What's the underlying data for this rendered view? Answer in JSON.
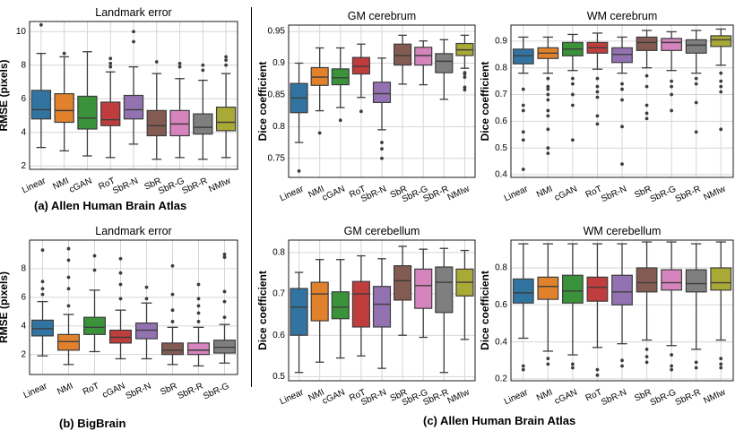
{
  "captions": {
    "a": "(a) Allen Human Brain Atlas",
    "b": "(b) BigBrain",
    "c": "(c) Allen Human Brain Atlas"
  },
  "colors": {
    "blue": "#3274a1",
    "orange": "#e1812c",
    "green": "#3a923a",
    "red": "#c03d3e",
    "purple": "#9372b2",
    "brown": "#845b53",
    "pink": "#d684bd",
    "gray": "#7f7f7f",
    "olive": "#a9aa35"
  },
  "chart_data": [
    {
      "id": "a",
      "type": "box",
      "title": "Landmark error",
      "xlabel": "",
      "ylabel": "RMSE (pixels)",
      "ylim": [
        1.8,
        10.6
      ],
      "yticks": [
        2,
        4,
        6,
        8,
        10
      ],
      "categories": [
        "Linear",
        "NMI",
        "cGAN",
        "RoT",
        "SbR-N",
        "SbR",
        "SbR-G",
        "SbR-R",
        "NMIw"
      ],
      "colors": [
        "blue",
        "orange",
        "green",
        "red",
        "purple",
        "brown",
        "pink",
        "gray",
        "olive"
      ],
      "boxes": [
        {
          "whislo": 3.1,
          "q1": 4.8,
          "med": 5.35,
          "q3": 6.5,
          "whishi": 8.7,
          "fliers": [
            10.4
          ]
        },
        {
          "whislo": 2.9,
          "q1": 4.6,
          "med": 5.3,
          "q3": 6.3,
          "whishi": 8.5,
          "fliers": [
            8.7
          ]
        },
        {
          "whislo": 2.6,
          "q1": 4.2,
          "med": 4.85,
          "q3": 6.15,
          "whishi": 8.8,
          "fliers": []
        },
        {
          "whislo": 2.5,
          "q1": 4.4,
          "med": 4.75,
          "q3": 5.8,
          "whishi": 7.6,
          "fliers": [
            7.9,
            8.1,
            8.4
          ]
        },
        {
          "whislo": 3.3,
          "q1": 4.8,
          "med": 5.35,
          "q3": 6.2,
          "whishi": 7.9,
          "fliers": [
            9.4,
            10.0
          ]
        },
        {
          "whislo": 2.4,
          "q1": 3.8,
          "med": 4.4,
          "q3": 5.3,
          "whishi": 7.5,
          "fliers": [
            8.2
          ]
        },
        {
          "whislo": 2.5,
          "q1": 3.8,
          "med": 4.5,
          "q3": 5.3,
          "whishi": 7.2,
          "fliers": [
            7.9,
            8.1
          ]
        },
        {
          "whislo": 2.4,
          "q1": 3.9,
          "med": 4.3,
          "q3": 5.1,
          "whishi": 7.1,
          "fliers": [
            7.7,
            8.0
          ]
        },
        {
          "whislo": 2.5,
          "q1": 4.1,
          "med": 4.6,
          "q3": 5.5,
          "whishi": 7.5,
          "fliers": [
            8.0,
            8.3,
            8.5
          ]
        }
      ]
    },
    {
      "id": "b",
      "type": "box",
      "title": "Landmark error",
      "xlabel": "",
      "ylabel": "RMSE (pixels)",
      "ylim": [
        0.6,
        10.0
      ],
      "yticks": [
        2,
        4,
        6,
        8
      ],
      "categories": [
        "Linear",
        "NMI",
        "RoT",
        "cGAN",
        "SbR-N",
        "SbR",
        "SbR-R",
        "SbR-G"
      ],
      "colors": [
        "blue",
        "orange",
        "green",
        "red",
        "purple",
        "brown",
        "pink",
        "gray"
      ],
      "boxes": [
        {
          "whislo": 1.9,
          "q1": 3.3,
          "med": 3.8,
          "q3": 4.4,
          "whishi": 5.7,
          "fliers": [
            6.2,
            6.6,
            7.1,
            9.3
          ]
        },
        {
          "whislo": 1.3,
          "q1": 2.3,
          "med": 2.9,
          "q3": 3.4,
          "whishi": 4.8,
          "fliers": [
            5.4,
            6.6,
            7.4,
            8.6,
            9.4
          ]
        },
        {
          "whislo": 2.2,
          "q1": 3.4,
          "med": 3.9,
          "q3": 4.6,
          "whishi": 6.5,
          "fliers": [
            7.9,
            8.9
          ]
        },
        {
          "whislo": 1.7,
          "q1": 2.8,
          "med": 3.2,
          "q3": 3.7,
          "whishi": 5.1,
          "fliers": [
            5.9,
            6.9,
            7.7,
            8.7
          ]
        },
        {
          "whislo": 1.7,
          "q1": 3.1,
          "med": 3.7,
          "q3": 4.2,
          "whishi": 5.6,
          "fliers": [
            5.9,
            6.7
          ]
        },
        {
          "whislo": 1.3,
          "q1": 2.0,
          "med": 2.3,
          "q3": 2.8,
          "whishi": 3.9,
          "fliers": [
            4.3,
            5.1,
            6.2,
            8.2
          ]
        },
        {
          "whislo": 1.2,
          "q1": 2.0,
          "med": 2.3,
          "q3": 2.8,
          "whishi": 3.9,
          "fliers": [
            4.3,
            4.9,
            5.4,
            5.9,
            6.9
          ]
        },
        {
          "whislo": 1.4,
          "q1": 2.1,
          "med": 2.5,
          "q3": 3.0,
          "whishi": 4.1,
          "fliers": [
            4.6,
            5.7,
            6.4,
            8.8,
            9.0
          ]
        }
      ]
    },
    {
      "id": "c1",
      "type": "box",
      "title": "GM cerebrum",
      "xlabel": "",
      "ylabel": "Dice coefficient",
      "ylim": [
        0.72,
        0.96
      ],
      "yticks": [
        0.75,
        0.8,
        0.85,
        0.9,
        0.95
      ],
      "categories": [
        "Linear",
        "NMI",
        "cGAN",
        "RoT",
        "SbR-N",
        "SbR",
        "SbR-G",
        "SbR-R",
        "NMIw"
      ],
      "colors": [
        "blue",
        "orange",
        "green",
        "red",
        "purple",
        "brown",
        "pink",
        "gray",
        "olive"
      ],
      "boxes": [
        {
          "whislo": 0.775,
          "q1": 0.822,
          "med": 0.845,
          "q3": 0.868,
          "whishi": 0.9,
          "fliers": [
            0.73
          ]
        },
        {
          "whislo": 0.825,
          "q1": 0.865,
          "med": 0.878,
          "q3": 0.893,
          "whishi": 0.924,
          "fliers": [
            0.79
          ]
        },
        {
          "whislo": 0.83,
          "q1": 0.866,
          "med": 0.877,
          "q3": 0.891,
          "whishi": 0.924,
          "fliers": [
            0.81
          ]
        },
        {
          "whislo": 0.846,
          "q1": 0.883,
          "med": 0.895,
          "q3": 0.909,
          "whishi": 0.93,
          "fliers": [
            0.824
          ]
        },
        {
          "whislo": 0.795,
          "q1": 0.838,
          "med": 0.852,
          "q3": 0.87,
          "whishi": 0.908,
          "fliers": [
            0.775,
            0.765,
            0.75
          ]
        },
        {
          "whislo": 0.867,
          "q1": 0.897,
          "med": 0.912,
          "q3": 0.93,
          "whishi": 0.944,
          "fliers": []
        },
        {
          "whislo": 0.866,
          "q1": 0.897,
          "med": 0.912,
          "q3": 0.925,
          "whishi": 0.935,
          "fliers": []
        },
        {
          "whislo": 0.843,
          "q1": 0.885,
          "med": 0.903,
          "q3": 0.915,
          "whishi": 0.937,
          "fliers": []
        },
        {
          "whislo": 0.892,
          "q1": 0.912,
          "med": 0.921,
          "q3": 0.931,
          "whishi": 0.944,
          "fliers": [
            0.885,
            0.883,
            0.878,
            0.862,
            0.858
          ]
        }
      ]
    },
    {
      "id": "c2",
      "type": "box",
      "title": "WM cerebrum",
      "xlabel": "",
      "ylabel": "Dice coefficient",
      "ylim": [
        0.39,
        0.96
      ],
      "yticks": [
        0.4,
        0.5,
        0.6,
        0.7,
        0.8,
        0.9
      ],
      "categories": [
        "Linear",
        "NMI",
        "cGAN",
        "RoT",
        "SbR-N",
        "SbR",
        "SbR-G",
        "SbR-R",
        "NMIw"
      ],
      "colors": [
        "blue",
        "orange",
        "green",
        "red",
        "purple",
        "brown",
        "pink",
        "gray",
        "olive"
      ],
      "boxes": [
        {
          "whislo": 0.78,
          "q1": 0.815,
          "med": 0.845,
          "q3": 0.87,
          "whishi": 0.915,
          "fliers": [
            0.72,
            0.66,
            0.64,
            0.56,
            0.53,
            0.42
          ]
        },
        {
          "whislo": 0.78,
          "q1": 0.835,
          "med": 0.855,
          "q3": 0.875,
          "whishi": 0.915,
          "fliers": [
            0.76,
            0.73,
            0.72,
            0.7,
            0.68,
            0.64,
            0.62,
            0.57,
            0.5,
            0.48
          ]
        },
        {
          "whislo": 0.79,
          "q1": 0.845,
          "med": 0.87,
          "q3": 0.895,
          "whishi": 0.925,
          "fliers": [
            0.76,
            0.74,
            0.7,
            0.66,
            0.53
          ]
        },
        {
          "whislo": 0.795,
          "q1": 0.855,
          "med": 0.875,
          "q3": 0.895,
          "whishi": 0.93,
          "fliers": [
            0.76,
            0.73,
            0.71,
            0.69,
            0.62,
            0.59
          ]
        },
        {
          "whislo": 0.78,
          "q1": 0.82,
          "med": 0.85,
          "q3": 0.875,
          "whishi": 0.915,
          "fliers": [
            0.74,
            0.72,
            0.68,
            0.58,
            0.44
          ]
        },
        {
          "whislo": 0.8,
          "q1": 0.865,
          "med": 0.895,
          "q3": 0.915,
          "whishi": 0.94,
          "fliers": [
            0.77,
            0.73,
            0.66,
            0.63,
            0.61
          ]
        },
        {
          "whislo": 0.79,
          "q1": 0.865,
          "med": 0.895,
          "q3": 0.91,
          "whishi": 0.935,
          "fliers": [
            0.75,
            0.73,
            0.7,
            0.64
          ]
        },
        {
          "whislo": 0.78,
          "q1": 0.855,
          "med": 0.885,
          "q3": 0.905,
          "whishi": 0.94,
          "fliers": [
            0.76,
            0.74,
            0.67,
            0.56
          ]
        },
        {
          "whislo": 0.81,
          "q1": 0.88,
          "med": 0.905,
          "q3": 0.92,
          "whishi": 0.945,
          "fliers": [
            0.78,
            0.75,
            0.73,
            0.71,
            0.57
          ]
        }
      ]
    },
    {
      "id": "c3",
      "type": "box",
      "title": "GM cerebellum",
      "xlabel": "",
      "ylabel": "Dice coefficient",
      "ylim": [
        0.49,
        0.83
      ],
      "yticks": [
        0.5,
        0.6,
        0.7,
        0.8
      ],
      "categories": [
        "Linear",
        "NMI",
        "cGAN",
        "RoT",
        "SbR-N",
        "SbR",
        "SbR-G",
        "SbR-R",
        "NMIw"
      ],
      "colors": [
        "blue",
        "orange",
        "green",
        "red",
        "purple",
        "brown",
        "pink",
        "gray",
        "olive"
      ],
      "boxes": [
        {
          "whislo": 0.51,
          "q1": 0.6,
          "med": 0.668,
          "q3": 0.713,
          "whishi": 0.752,
          "fliers": []
        },
        {
          "whislo": 0.535,
          "q1": 0.635,
          "med": 0.7,
          "q3": 0.728,
          "whishi": 0.783,
          "fliers": []
        },
        {
          "whislo": 0.545,
          "q1": 0.64,
          "med": 0.668,
          "q3": 0.705,
          "whishi": 0.783,
          "fliers": []
        },
        {
          "whislo": 0.55,
          "q1": 0.62,
          "med": 0.7,
          "q3": 0.73,
          "whishi": 0.792,
          "fliers": []
        },
        {
          "whislo": 0.52,
          "q1": 0.62,
          "med": 0.675,
          "q3": 0.718,
          "whishi": 0.785,
          "fliers": []
        },
        {
          "whislo": 0.6,
          "q1": 0.685,
          "med": 0.732,
          "q3": 0.768,
          "whishi": 0.815,
          "fliers": []
        },
        {
          "whislo": 0.595,
          "q1": 0.665,
          "med": 0.72,
          "q3": 0.76,
          "whishi": 0.808,
          "fliers": []
        },
        {
          "whislo": 0.51,
          "q1": 0.655,
          "med": 0.728,
          "q3": 0.765,
          "whishi": 0.81,
          "fliers": []
        },
        {
          "whislo": 0.59,
          "q1": 0.695,
          "med": 0.728,
          "q3": 0.76,
          "whishi": 0.805,
          "fliers": []
        }
      ]
    },
    {
      "id": "c4",
      "type": "box",
      "title": "WM cerebellum",
      "xlabel": "",
      "ylabel": "Dice coefficient",
      "ylim": [
        0.19,
        0.95
      ],
      "yticks": [
        0.2,
        0.4,
        0.6,
        0.8
      ],
      "categories": [
        "Linear",
        "NMI",
        "cGAN",
        "RoT",
        "SbR-N",
        "SbR",
        "SbR-G",
        "SbR-R",
        "NMIw"
      ],
      "colors": [
        "blue",
        "orange",
        "green",
        "red",
        "purple",
        "brown",
        "pink",
        "gray",
        "olive"
      ],
      "boxes": [
        {
          "whislo": 0.42,
          "q1": 0.61,
          "med": 0.665,
          "q3": 0.74,
          "whishi": 0.93,
          "fliers": [
            0.27,
            0.25
          ]
        },
        {
          "whislo": 0.35,
          "q1": 0.63,
          "med": 0.7,
          "q3": 0.75,
          "whishi": 0.93,
          "fliers": [
            0.31,
            0.28
          ]
        },
        {
          "whislo": 0.33,
          "q1": 0.61,
          "med": 0.675,
          "q3": 0.76,
          "whishi": 0.93,
          "fliers": [
            0.28,
            0.26
          ]
        },
        {
          "whislo": 0.37,
          "q1": 0.62,
          "med": 0.695,
          "q3": 0.75,
          "whishi": 0.93,
          "fliers": [
            0.25,
            0.22
          ]
        },
        {
          "whislo": 0.39,
          "q1": 0.6,
          "med": 0.67,
          "q3": 0.76,
          "whishi": 0.93,
          "fliers": [
            0.3,
            0.27
          ]
        },
        {
          "whislo": 0.41,
          "q1": 0.67,
          "med": 0.72,
          "q3": 0.8,
          "whishi": 0.94,
          "fliers": [
            0.36,
            0.32,
            0.29
          ]
        },
        {
          "whislo": 0.38,
          "q1": 0.68,
          "med": 0.72,
          "q3": 0.79,
          "whishi": 0.94,
          "fliers": [
            0.33,
            0.27,
            0.25
          ]
        },
        {
          "whislo": 0.36,
          "q1": 0.67,
          "med": 0.715,
          "q3": 0.79,
          "whishi": 0.93,
          "fliers": [
            0.29,
            0.26
          ]
        },
        {
          "whislo": 0.41,
          "q1": 0.68,
          "med": 0.72,
          "q3": 0.8,
          "whishi": 0.94,
          "fliers": [
            0.31,
            0.28,
            0.26
          ]
        }
      ]
    }
  ]
}
